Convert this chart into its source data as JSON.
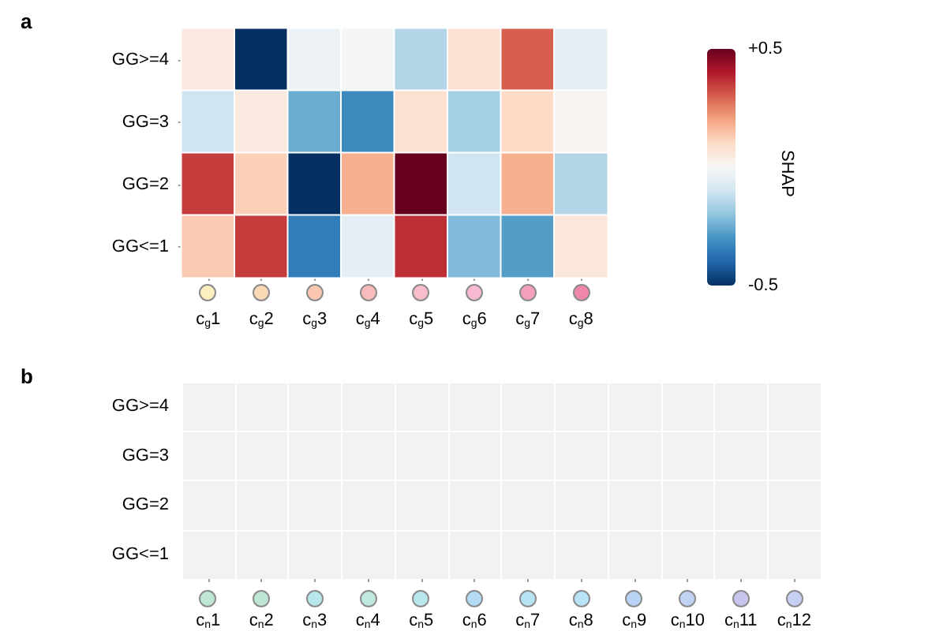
{
  "chart_data": [
    {
      "type": "heatmap",
      "title": "a",
      "categories": [
        "c$_{g}$1",
        "c$_{g}$2",
        "c$_{g}$3",
        "c$_{g}$4",
        "c$_{g}$5",
        "c$_{g}$6",
        "c$_{g}$7",
        "c$_{g}$8"
      ],
      "y_categories": [
        "GG>=4",
        "GG=3",
        "GG=2",
        "GG<=1"
      ],
      "cells": [
        [
          0.05,
          -0.5,
          -0.03,
          -0.01,
          -0.15,
          0.08,
          0.3,
          -0.05
        ],
        [
          -0.1,
          0.05,
          -0.25,
          -0.32,
          0.08,
          -0.17,
          0.1,
          0.01
        ],
        [
          0.35,
          0.12,
          -0.5,
          0.18,
          0.5,
          -0.1,
          0.18,
          -0.15
        ],
        [
          0.13,
          0.35,
          -0.35,
          -0.05,
          0.37,
          -0.22,
          -0.28,
          0.06
        ]
      ],
      "clabel": "SHAP",
      "clim": [
        -0.5,
        0.5
      ],
      "cticks": [
        {
          "value": -0.5,
          "label": "-0.5"
        },
        {
          "value": 0.5,
          "label": "+0.5"
        }
      ],
      "grid": false
    },
    {
      "type": "heatmap",
      "title": "b",
      "categories": [
        "c$_{n}$1",
        "c$_{n}$2",
        "c$_{n}$3",
        "c$_{n}$4",
        "c$_{n}$5",
        "c$_{n}$6",
        "c$_{n}$7",
        "c$_{n}$8",
        "c$_{n}$9",
        "c$_{n}$10",
        "c$_{n}$11",
        "c$_{n}$12"
      ],
      "y_categories": [
        "GG>=4",
        "GG=3",
        "GG=2",
        "GG<=1"
      ],
      "cells": [
        [
          null,
          null,
          null,
          null,
          null,
          null,
          null,
          null,
          null,
          null,
          null,
          null
        ],
        [
          null,
          null,
          null,
          null,
          null,
          null,
          null,
          null,
          null,
          null,
          null,
          null
        ],
        [
          null,
          null,
          null,
          null,
          null,
          null,
          null,
          null,
          null,
          null,
          null,
          null
        ],
        [
          null,
          null,
          null,
          null,
          null,
          null,
          null,
          null,
          null,
          null,
          null,
          null
        ]
      ],
      "grid": true
    }
  ]
}
